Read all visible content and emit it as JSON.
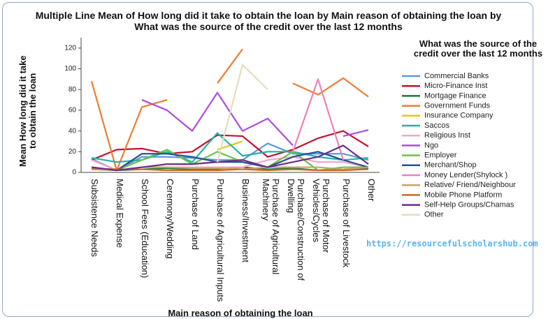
{
  "chart_data": {
    "type": "line",
    "title": "Multiple Line Mean of How long did it take to obtain the loan by Main reason of obtaining the loan by What was the source of the credit over the last 12 months",
    "y_label": "Mean How long did it take to obtain the loan",
    "x_label": "Main reason of obtaining the loan",
    "legend_title": "What was the source of the credit over the last 12 months",
    "legend_position": "right",
    "annotation": "https://resourcefulscholarshub.com",
    "categories": [
      "Subsistence Needs",
      "Medical Expense",
      "School Fees (Education)",
      "Ceremony/Wedding",
      "Purchase of Land",
      "Purchase of Agricultural Inputs",
      "Business/Investment",
      "Purchase of Agricultural Machinery",
      "Purchase/Construction of Dwelling",
      "Purchase of Motor Vehicles/Cycles",
      "Purchase of Livestock",
      "Other"
    ],
    "ylim": [
      0,
      130
    ],
    "yticks": [
      0,
      20,
      40,
      60,
      80,
      100,
      120
    ],
    "series": [
      {
        "name": "Commercial Banks",
        "color": "#5b9bd5",
        "values": [
          13,
          2,
          15,
          15,
          14,
          12,
          12,
          28,
          18,
          18,
          18,
          12
        ]
      },
      {
        "name": "Micro-Finance Inst",
        "color": "#c8102e",
        "values": [
          12,
          22,
          23,
          18,
          20,
          36,
          35,
          15,
          22,
          33,
          40,
          25
        ]
      },
      {
        "name": "Mortgage  Finance",
        "color": "#1a7a3a",
        "values": [
          3,
          2,
          3,
          4,
          3,
          3,
          5,
          3,
          4,
          2,
          3,
          4
        ]
      },
      {
        "name": "Government Funds",
        "color": "#ed7d31",
        "values": [
          88,
          2,
          63,
          70,
          null,
          86,
          119,
          null,
          86,
          75,
          91,
          73
        ]
      },
      {
        "name": "Insurance Company",
        "color": "#e6c619",
        "values": [
          null,
          null,
          null,
          null,
          null,
          22,
          30,
          null,
          null,
          null,
          null,
          null
        ]
      },
      {
        "name": "Saccos",
        "color": "#1fb5a8",
        "values": [
          14,
          10,
          12,
          20,
          10,
          38,
          16,
          20,
          20,
          15,
          12,
          14
        ]
      },
      {
        "name": "Religious Inst",
        "color": "#f4a6c9",
        "values": [
          12,
          2,
          5,
          5,
          5,
          5,
          5,
          12,
          15,
          10,
          10,
          5
        ]
      },
      {
        "name": "Ngo",
        "color": "#a94be6",
        "values": [
          null,
          null,
          70,
          60,
          40,
          77,
          40,
          52,
          26,
          null,
          35,
          41
        ]
      },
      {
        "name": "Employer",
        "color": "#6cc24a",
        "values": [
          5,
          2,
          12,
          22,
          8,
          20,
          10,
          5,
          20,
          2,
          5,
          5
        ]
      },
      {
        "name": "Merchant/Shop",
        "color": "#2c4d9a",
        "values": [
          5,
          2,
          18,
          18,
          15,
          10,
          10,
          5,
          15,
          20,
          12,
          5
        ]
      },
      {
        "name": "Money Lender(Shylock )",
        "color": "#f07fb8",
        "values": [
          null,
          null,
          null,
          null,
          null,
          null,
          null,
          null,
          20,
          90,
          12,
          null
        ]
      },
      {
        "name": "Relative/ Friend/Neighbour",
        "color": "#c8a26a",
        "values": [
          3,
          2,
          5,
          5,
          4,
          4,
          3,
          5,
          5,
          5,
          3,
          5
        ]
      },
      {
        "name": "Mobile Phone Platform",
        "color": "#d06a24",
        "values": [
          4,
          3,
          3,
          2,
          2,
          2,
          3,
          2,
          3,
          2,
          2,
          3
        ]
      },
      {
        "name": "Self-Help Groups/Chamas",
        "color": "#6b2d8a",
        "values": [
          5,
          2,
          5,
          8,
          8,
          10,
          12,
          5,
          10,
          15,
          26,
          8
        ]
      },
      {
        "name": "Other",
        "color": "#e8dcbc",
        "values": [
          null,
          null,
          null,
          null,
          null,
          10,
          104,
          80,
          null,
          null,
          null,
          null
        ]
      }
    ]
  }
}
